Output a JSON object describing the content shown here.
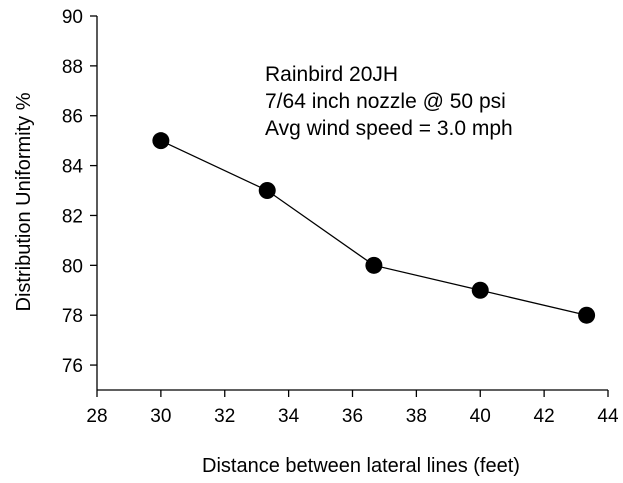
{
  "chart_data": {
    "type": "line",
    "title": "",
    "xlabel": "Distance between lateral lines  (feet)",
    "ylabel": "Distribution Uniformity %",
    "xlim": [
      28,
      44
    ],
    "ylim": [
      75,
      90
    ],
    "x_ticks": [
      28,
      30,
      32,
      34,
      36,
      38,
      40,
      42,
      44
    ],
    "y_ticks": [
      76,
      78,
      80,
      82,
      84,
      86,
      88,
      90
    ],
    "grid": false,
    "series": [
      {
        "x": [
          30,
          33.33,
          36.67,
          40,
          43.33
        ],
        "y": [
          85,
          83,
          80,
          79,
          78
        ],
        "marker": "filled-circle",
        "color": "#000000"
      }
    ],
    "annotations": [
      "Rainbird 20JH",
      "7/64 inch nozzle @ 50 psi",
      "Avg wind speed = 3.0 mph"
    ]
  }
}
